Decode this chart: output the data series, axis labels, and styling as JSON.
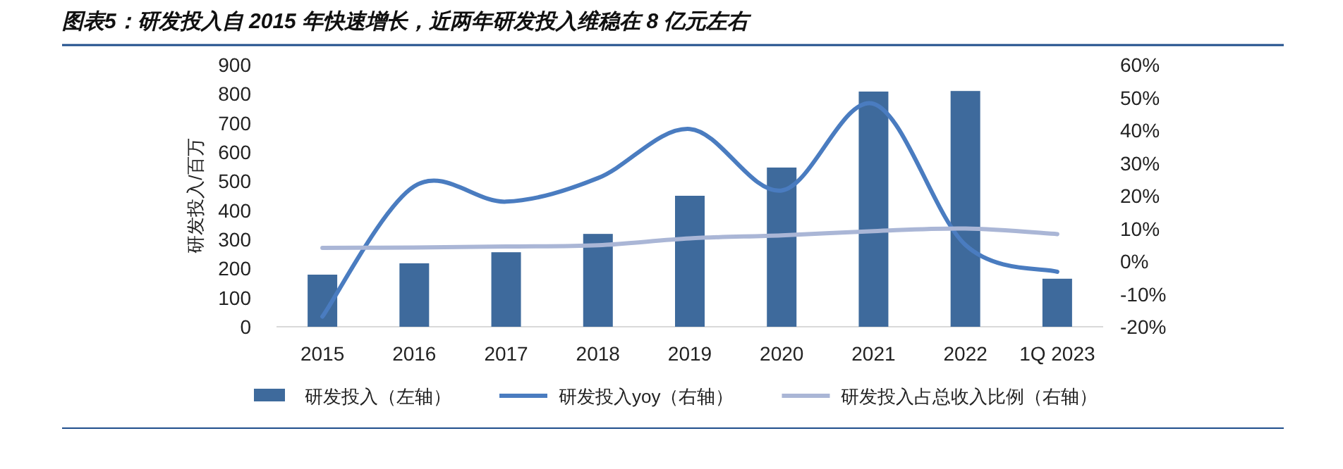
{
  "chart_data": {
    "type": "bar",
    "title": "图表5：研发投入自 2015 年快速增长，近两年研发投入维稳在 8 亿元左右",
    "ylabel": "研发投入/百万",
    "categories": [
      "2015",
      "2016",
      "2017",
      "2018",
      "2019",
      "2020",
      "2021",
      "2022",
      "1Q 2023"
    ],
    "series": [
      {
        "name": "研发投入（左轴）",
        "color": "#3e6a9c",
        "values": [
          179,
          218,
          256,
          319,
          450,
          547,
          808,
          810,
          165
        ]
      },
      {
        "name": "研发投入yoy（右轴）",
        "type": "line",
        "axis": "y2",
        "color": "#4a7cc0",
        "values": [
          -16.9,
          22.9,
          18.2,
          25.4,
          40.4,
          21.6,
          48.1,
          5,
          -3.2
        ]
      },
      {
        "name": "研发投入占总收入比例（右轴）",
        "type": "line",
        "axis": "y2",
        "color": "#aab6d6",
        "values": [
          4.1,
          4.2,
          4.5,
          4.9,
          7.0,
          7.9,
          9.2,
          10.0,
          8.3
        ]
      }
    ],
    "ylim": [
      0,
      900
    ],
    "yticks": [
      0,
      100,
      200,
      300,
      400,
      500,
      600,
      700,
      800,
      900
    ],
    "y2lim": [
      -20,
      60
    ],
    "y2ticks": [
      {
        "value": -20,
        "label": "-20%"
      },
      {
        "value": -10,
        "label": "-10%"
      },
      {
        "value": 0,
        "label": "0%"
      },
      {
        "value": 10,
        "label": "10%"
      },
      {
        "value": 20,
        "label": "20%"
      },
      {
        "value": 30,
        "label": "30%"
      },
      {
        "value": 40,
        "label": "40%"
      },
      {
        "value": 50,
        "label": "50%"
      },
      {
        "value": 60,
        "label": "60%"
      }
    ],
    "legend": "bottom"
  }
}
